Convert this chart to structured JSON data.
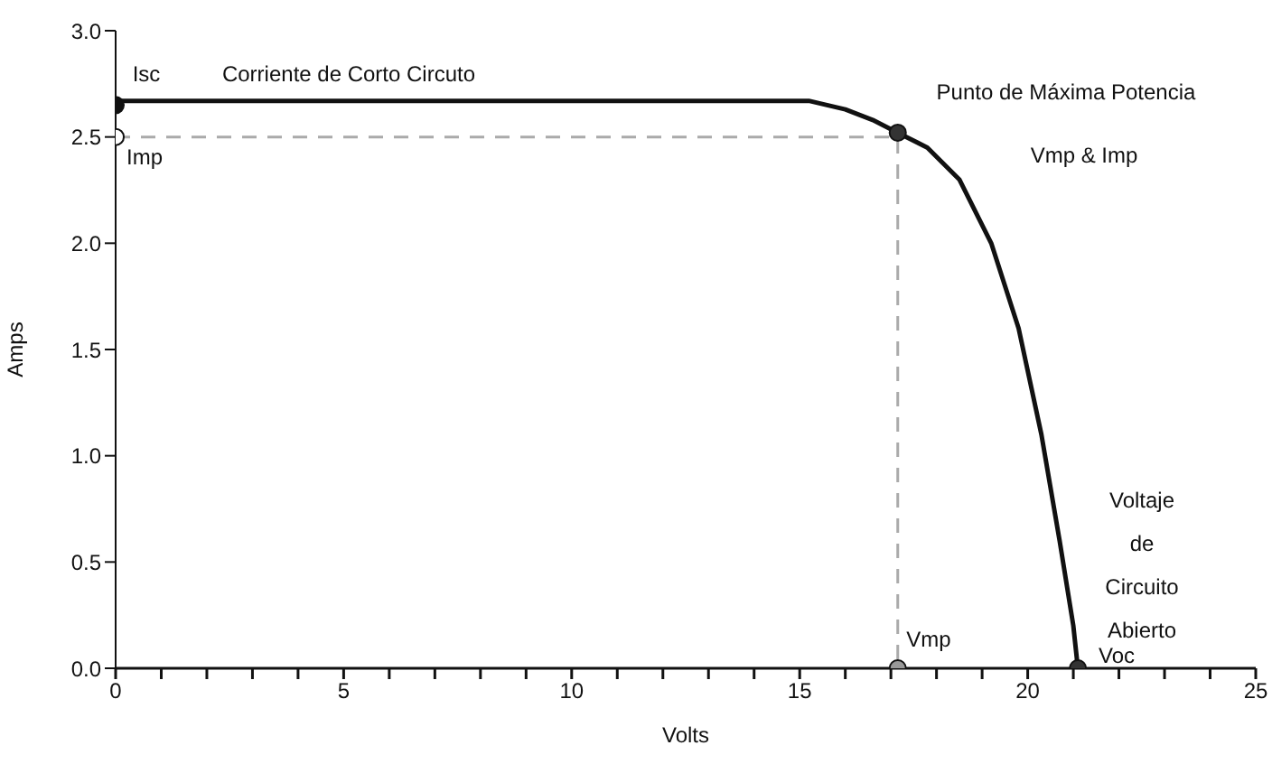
{
  "chart_data": {
    "type": "line",
    "xlabel": "Volts",
    "ylabel": "Amps",
    "xlim": [
      0,
      25
    ],
    "ylim": [
      0,
      3.0
    ],
    "xticks": [
      0,
      {
        "value": 1,
        "label": null
      },
      {
        "value": 2,
        "label": null
      },
      {
        "value": 3,
        "label": null
      },
      {
        "value": 4,
        "label": null
      },
      5,
      {
        "value": 6,
        "label": null
      },
      {
        "value": 7,
        "label": null
      },
      {
        "value": 8,
        "label": null
      },
      {
        "value": 9,
        "label": null
      },
      10,
      {
        "value": 11,
        "label": null
      },
      {
        "value": 12,
        "label": null
      },
      {
        "value": 13,
        "label": null
      },
      {
        "value": 14,
        "label": null
      },
      15,
      {
        "value": 16,
        "label": null
      },
      {
        "value": 17,
        "label": null
      },
      {
        "value": 18,
        "label": null
      },
      {
        "value": 19,
        "label": null
      },
      20,
      {
        "value": 21,
        "label": null
      },
      {
        "value": 22,
        "label": null
      },
      {
        "value": 23,
        "label": null
      },
      {
        "value": 24,
        "label": null
      },
      25
    ],
    "yticks": [
      {
        "value": 0,
        "label": "0.0"
      },
      {
        "value": 0.5,
        "label": "0.5"
      },
      {
        "value": 1,
        "label": "1.0"
      },
      {
        "value": 1.5,
        "label": "1.5"
      },
      {
        "value": 2,
        "label": "2.0"
      },
      {
        "value": 2.5,
        "label": "2.5"
      },
      {
        "value": 3,
        "label": "3.0"
      }
    ],
    "series": [
      {
        "color": "#aaaaaa",
        "line_style": "dashed",
        "marker": "none",
        "x": [
          0,
          17.15,
          17.15
        ],
        "values": [
          2.5,
          2.5,
          0
        ]
      },
      {
        "color": "#111111",
        "line_style": "solid",
        "marker": "none",
        "x": [
          0,
          15.2,
          16,
          16.6,
          17.15,
          17.8,
          18.5,
          19.2,
          19.8,
          20.3,
          20.7,
          21.0,
          21.1
        ],
        "values": [
          2.67,
          2.67,
          2.63,
          2.58,
          2.52,
          2.45,
          2.3,
          2.0,
          1.6,
          1.1,
          0.6,
          0.2,
          0
        ]
      },
      {
        "type": "scatter",
        "marker": "circle",
        "x": [
          0,
          0,
          17.15,
          17.15,
          21.1
        ],
        "values": [
          2.65,
          2.5,
          2.52,
          0,
          0
        ],
        "colors": [
          "#111111",
          "#ffffff",
          "#333333",
          "#999999",
          "#333333"
        ]
      }
    ],
    "annotations": [
      "Isc",
      "Corriente de Corto Circuto",
      "Imp",
      "Punto de Máxima Potencia",
      "Vmp & Imp",
      "Voltaje\nde\nCircuito\nAbierto",
      "Vmp",
      "Voc"
    ]
  }
}
